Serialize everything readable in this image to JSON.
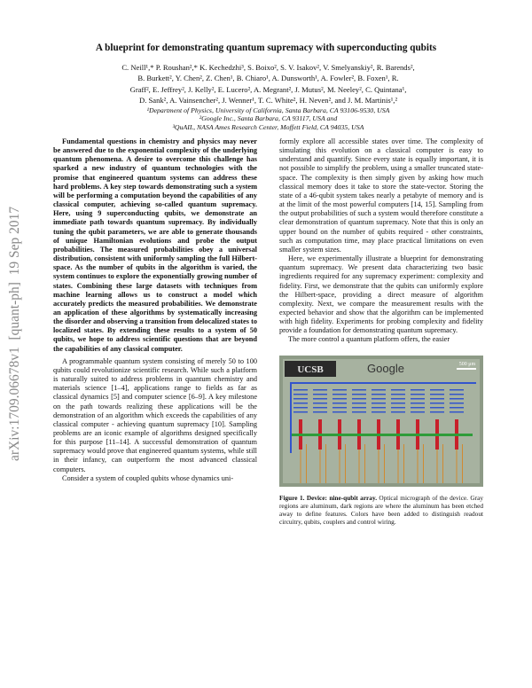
{
  "sidebar": "arXiv:1709.06678v1  [quant-ph]  19 Sep 2017",
  "header": {
    "title": "A blueprint for demonstrating quantum supremacy with superconducting qubits",
    "authors": [
      "C. Neill¹,* P. Roushan²,* K. Kechedzhi³, S. Boixo², S. V. Isakov², V. Smelyanskiy², R. Barends²,",
      "B. Burkett², Y. Chen², Z. Chen¹, B. Chiaro¹, A. Dunsworth¹, A. Fowler², B. Foxen¹, R.",
      "Graff², E. Jeffrey², J. Kelly², E. Lucero², A. Megrant², J. Mutus², M. Neeley², C. Quintana¹,",
      "D. Sank², A. Vainsencher², J. Wenner¹, T. C. White², H. Neven², and J. M. Martinis¹,²"
    ],
    "affiliations": [
      "¹Department of Physics, University of California, Santa Barbara, CA 93106-9530, USA",
      "²Google Inc., Santa Barbara, CA 93117, USA and",
      "³QuAIL, NASA Ames Research Center, Moffett Field, CA 94035, USA"
    ]
  },
  "abstract": "Fundamental questions in chemistry and physics may never be answered due to the exponential complexity of the underlying quantum phenomena. A desire to overcome this challenge has sparked a new industry of quantum technologies with the promise that engineered quantum systems can address these hard problems. A key step towards demonstrating such a system will be performing a computation beyond the capabilities of any classical computer, achieving so-called quantum supremacy. Here, using 9 superconducting qubits, we demonstrate an immediate path towards quantum supremacy. By individually tuning the qubit parameters, we are able to generate thousands of unique Hamiltonian evolutions and probe the output probabilities. The measured probabilities obey a universal distribution, consistent with uniformly sampling the full Hilbert-space. As the number of qubits in the algorithm is varied, the system continues to explore the exponentially growing number of states. Combining these large datasets with techniques from machine learning allows us to construct a model which accurately predicts the measured probabilities. We demonstrate an application of these algorithms by systematically increasing the disorder and observing a transition from delocalized states to localized states. By extending these results to a system of 50 qubits, we hope to address scientific questions that are beyond the capabilities of any classical computer.",
  "left_column": [
    "A programmable quantum system consisting of merely 50 to 100 qubits could revolutionize scientific research. While such a platform is naturally suited to address problems in quantum chemistry and materials science [1–4], applications range to fields as far as classical dynamics [5] and computer science [6–9]. A key milestone on the path towards realizing these applications will be the demonstration of an algorithm which exceeds the capabilities of any classical computer - achieving quantum supremacy [10]. Sampling problems are an iconic example of algorithms designed specifically for this purpose [11–14]. A successful demonstration of quantum supremacy would prove that engineered quantum systems, while still in their infancy, can outperform the most advanced classical computers.",
    "Consider a system of coupled qubits whose dynamics uni-"
  ],
  "right_column": [
    "formly explore all accessible states over time. The complexity of simulating this evolution on a classical computer is easy to understand and quantify. Since every state is equally important, it is not possible to simplify the problem, using a smaller truncated state-space. The complexity is then simply given by asking how much classical memory does it take to store the state-vector. Storing the state of a 46-qubit system takes nearly a petabyte of memory and is at the limit of the most powerful computers [14, 15]. Sampling from the output probabilities of such a system would therefore constitute a clear demonstration of quantum supremacy. Note that this is only an upper bound on the number of qubits required - other constraints, such as computation time, may place practical limitations on even smaller system sizes.",
    "Here, we experimentally illustrate a blueprint for demonstrating quantum supremacy. We present data characterizing two basic ingredients required for any supremacy experiment: complexity and fidelity. First, we demonstrate that the qubits can uniformly explore the Hilbert-space, providing a direct measure of algorithm complexity. Next, we compare the measurement results with the expected behavior and show that the algorithm can be implemented with high fidelity. Experiments for probing complexity and fidelity provide a foundation for demonstrating quantum supremacy.",
    "The more control a quantum platform offers, the easier"
  ],
  "figure": {
    "image_labels": [
      "UCSB",
      "Google",
      "500 μm"
    ],
    "caption_label": "Figure 1.",
    "caption_title": "Device: nine-qubit array.",
    "caption_text": "Optical micrograph of the device. Gray regions are aluminum, dark regions are where the aluminum has been etched away to define features. Colors have been added to distinguish readout circuitry, qubits, couplers and control wiring."
  }
}
